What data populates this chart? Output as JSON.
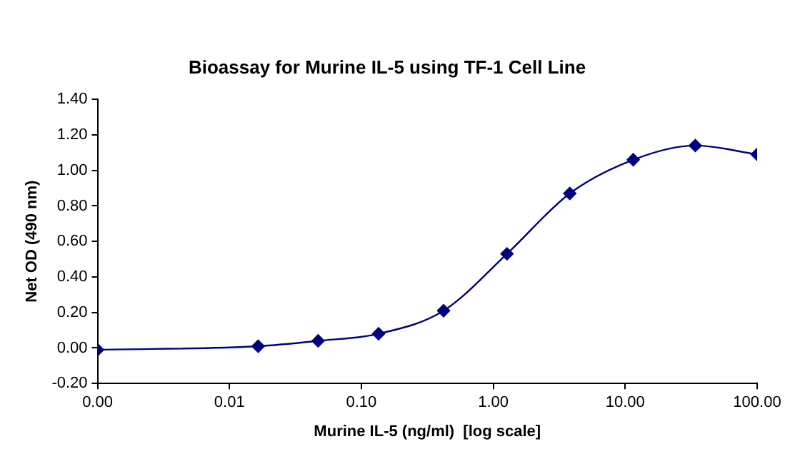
{
  "chart_data": {
    "type": "line",
    "title": "Bioassay for Murine IL-5 using TF-1 Cell Line",
    "xlabel": "Murine IL-5 (ng/ml)  [log scale]",
    "ylabel": "Net OD (490 nm)",
    "log": "x",
    "marker": "diamond",
    "line_style": "solid",
    "grid": false,
    "legend": false,
    "x": [
      0.001,
      0.0165,
      0.047,
      0.135,
      0.42,
      1.27,
      3.8,
      11.5,
      34,
      100
    ],
    "series": [
      {
        "color": "#000080",
        "values": [
          -0.01,
          0.01,
          0.04,
          0.08,
          0.21,
          0.53,
          0.87,
          1.06,
          1.14,
          1.09
        ]
      }
    ],
    "xlim": [
      0.001,
      100
    ],
    "xticks": [
      {
        "value": 0.001,
        "label": "0.00"
      },
      {
        "value": 0.01,
        "label": "0.01"
      },
      {
        "value": 0.1,
        "label": "0.10"
      },
      {
        "value": 1,
        "label": "1.00"
      },
      {
        "value": 10,
        "label": "10.00"
      },
      {
        "value": 100,
        "label": "100.00"
      }
    ],
    "ylim": [
      -0.2,
      1.4
    ],
    "yticks": [
      {
        "value": -0.2,
        "label": "-0.20"
      },
      {
        "value": 0,
        "label": "0.00"
      },
      {
        "value": 0.2,
        "label": "0.20"
      },
      {
        "value": 0.4,
        "label": "0.40"
      },
      {
        "value": 0.6,
        "label": "0.60"
      },
      {
        "value": 0.8,
        "label": "0.80"
      },
      {
        "value": 1,
        "label": "1.00"
      },
      {
        "value": 1.2,
        "label": "1.20"
      },
      {
        "value": 1.4,
        "label": "1.40"
      }
    ]
  }
}
